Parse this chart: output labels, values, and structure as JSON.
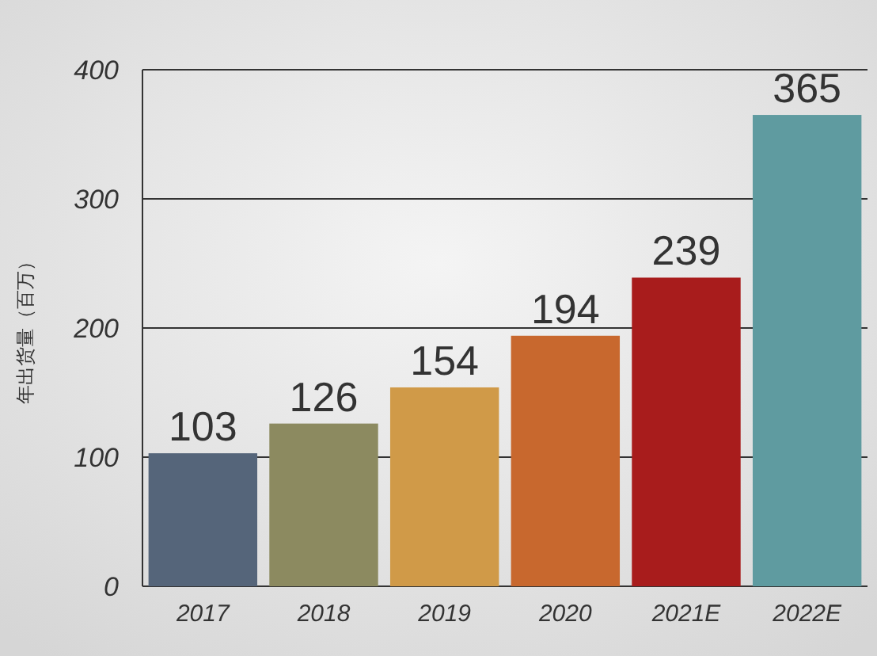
{
  "chart_data": {
    "type": "bar",
    "ylabel": "年出货量（百万）",
    "categories": [
      "2017",
      "2018",
      "2019",
      "2020",
      "2021E",
      "2022E"
    ],
    "values": [
      103,
      126,
      154,
      194,
      239,
      365
    ],
    "colors": [
      "#55657a",
      "#8c8a60",
      "#d09a48",
      "#c8682e",
      "#a81c1c",
      "#5f9ba0"
    ],
    "ylim": [
      0,
      400
    ],
    "yticks": [
      0,
      100,
      200,
      300,
      400
    ],
    "grid": "y",
    "data_labels": true
  }
}
